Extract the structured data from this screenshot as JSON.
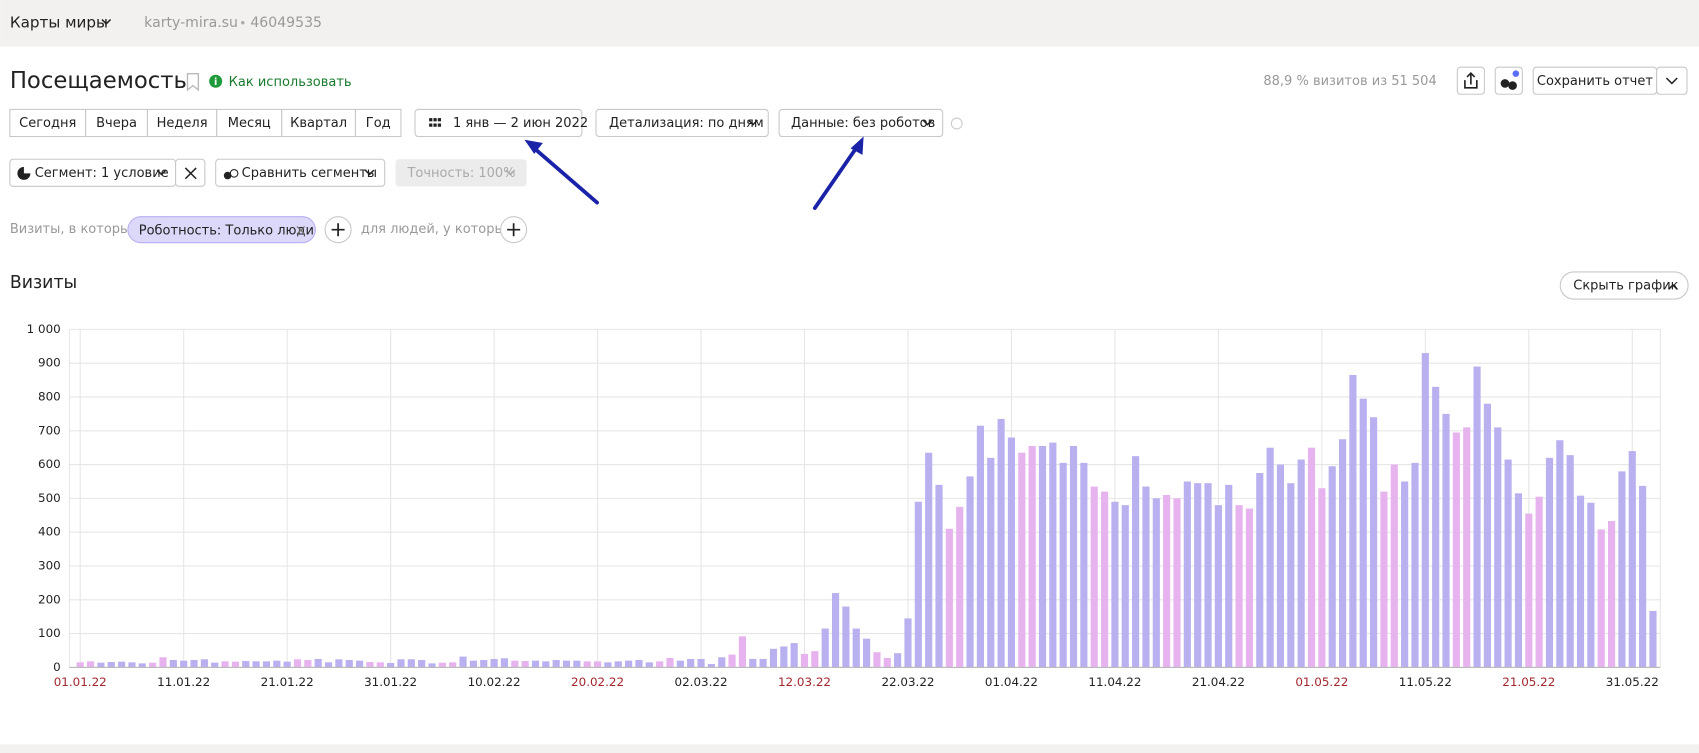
{
  "header": {
    "site": "Карты миры",
    "domain": "karty-mira.su",
    "counter": "46049535"
  },
  "report": {
    "title": "Посещаемость",
    "help": "Как использовать",
    "stats": "88,9 % визитов из 51 504",
    "save": "Сохранить отчет"
  },
  "controls": {
    "periods": [
      "Сегодня",
      "Вчера",
      "Неделя",
      "Месяц",
      "Квартал",
      "Год"
    ],
    "date_range": "1 янв — 2 июн 2022",
    "detail": "Детализация: по дням",
    "data": "Данные: без роботов",
    "segment": "Сегмент: 1 условие",
    "compare": "Сравнить сегменты",
    "accuracy": "Точность: 100%"
  },
  "filter": {
    "prefix": "Визиты, в которых",
    "chip": "Роботность: Только люди",
    "suffix": "для людей, у которых"
  },
  "chart_header": {
    "title": "Визиты",
    "hide": "Скрыть график"
  },
  "chart_data": {
    "type": "bar",
    "categories": [
      "01.01.22",
      null,
      null,
      null,
      null,
      null,
      null,
      null,
      null,
      null,
      "11.01.22",
      null,
      null,
      null,
      null,
      null,
      null,
      null,
      null,
      null,
      "21.01.22",
      null,
      null,
      null,
      null,
      null,
      null,
      null,
      null,
      null,
      "31.01.22",
      null,
      null,
      null,
      null,
      null,
      null,
      null,
      null,
      null,
      "10.02.22",
      null,
      null,
      null,
      null,
      null,
      null,
      null,
      null,
      null,
      "20.02.22",
      null,
      null,
      null,
      null,
      null,
      null,
      null,
      null,
      null,
      "02.03.22",
      null,
      null,
      null,
      null,
      null,
      null,
      null,
      null,
      null,
      "12.03.22",
      null,
      null,
      null,
      null,
      null,
      null,
      null,
      null,
      null,
      "22.03.22",
      null,
      null,
      null,
      null,
      null,
      null,
      null,
      null,
      null,
      "01.04.22",
      null,
      null,
      null,
      null,
      null,
      null,
      null,
      null,
      null,
      "11.04.22",
      null,
      null,
      null,
      null,
      null,
      null,
      null,
      null,
      null,
      "21.04.22",
      null,
      null,
      null,
      null,
      null,
      null,
      null,
      null,
      null,
      "01.05.22",
      null,
      null,
      null,
      null,
      null,
      null,
      null,
      null,
      null,
      "11.05.22",
      null,
      null,
      null,
      null,
      null,
      null,
      null,
      null,
      null,
      "21.05.22",
      null,
      null,
      null,
      null,
      null,
      null,
      null,
      null,
      null,
      "31.05.22",
      null,
      null
    ],
    "values": [
      15,
      18,
      14,
      16,
      17,
      15,
      12,
      14,
      30,
      22,
      20,
      22,
      24,
      14,
      18,
      17,
      19,
      18,
      18,
      20,
      17,
      24,
      22,
      25,
      15,
      24,
      22,
      20,
      16,
      15,
      13,
      24,
      24,
      22,
      12,
      14,
      15,
      32,
      20,
      22,
      25,
      27,
      20,
      19,
      20,
      18,
      22,
      20,
      20,
      18,
      18,
      15,
      18,
      20,
      22,
      15,
      18,
      28,
      20,
      25,
      25,
      10,
      30,
      38,
      92,
      25,
      25,
      55,
      62,
      72,
      40,
      48,
      115,
      220,
      180,
      115,
      85,
      45,
      28,
      42,
      145,
      490,
      635,
      540,
      410,
      475,
      565,
      715,
      620,
      735,
      680,
      635,
      655,
      655,
      665,
      605,
      655,
      605,
      535,
      520,
      490,
      480,
      625,
      535,
      500,
      510,
      500,
      550,
      545,
      545,
      480,
      540,
      480,
      470,
      575,
      650,
      600,
      545,
      615,
      650,
      530,
      595,
      675,
      865,
      795,
      740,
      520,
      600,
      550,
      605,
      930,
      830,
      750,
      695,
      710,
      890,
      780,
      710,
      615,
      515,
      455,
      505,
      620,
      672,
      628,
      508,
      487,
      408,
      433,
      580,
      640,
      537,
      167
    ],
    "colors": [
      "#e7b3ee",
      "#e7b3ee",
      "#b9b0f0",
      "#b9b0f0",
      "#b9b0f0",
      "#b9b0f0",
      "#b9b0f0",
      "#e7b3ee",
      "#e7b3ee",
      "#b9b0f0",
      "#b9b0f0",
      "#b9b0f0",
      "#b9b0f0",
      "#b9b0f0",
      "#e7b3ee",
      "#e7b3ee",
      "#b9b0f0",
      "#b9b0f0",
      "#b9b0f0",
      "#b9b0f0",
      "#b9b0f0",
      "#e7b3ee",
      "#e7b3ee",
      "#b9b0f0",
      "#b9b0f0",
      "#b9b0f0",
      "#b9b0f0",
      "#b9b0f0",
      "#e7b3ee",
      "#e7b3ee",
      "#b9b0f0",
      "#b9b0f0",
      "#b9b0f0",
      "#b9b0f0",
      "#b9b0f0",
      "#e7b3ee",
      "#e7b3ee",
      "#b9b0f0",
      "#b9b0f0",
      "#b9b0f0",
      "#b9b0f0",
      "#b9b0f0",
      "#e7b3ee",
      "#e7b3ee",
      "#b9b0f0",
      "#b9b0f0",
      "#b9b0f0",
      "#b9b0f0",
      "#b9b0f0",
      "#e7b3ee",
      "#e7b3ee",
      "#b9b0f0",
      "#b9b0f0",
      "#b9b0f0",
      "#b9b0f0",
      "#b9b0f0",
      "#e7b3ee",
      "#e7b3ee",
      "#b9b0f0",
      "#b9b0f0",
      "#b9b0f0",
      "#b9b0f0",
      "#b9b0f0",
      "#e7b3ee",
      "#e7b3ee",
      "#b9b0f0",
      "#b9b0f0",
      "#b9b0f0",
      "#b9b0f0",
      "#b9b0f0",
      "#e7b3ee",
      "#e7b3ee",
      "#b9b0f0",
      "#b9b0f0",
      "#b9b0f0",
      "#b9b0f0",
      "#b9b0f0",
      "#e7b3ee",
      "#e7b3ee",
      "#b9b0f0",
      "#b9b0f0",
      "#b9b0f0",
      "#b9b0f0",
      "#b9b0f0",
      "#e7b3ee",
      "#e7b3ee",
      "#b9b0f0",
      "#b9b0f0",
      "#b9b0f0",
      "#b9b0f0",
      "#b9b0f0",
      "#e7b3ee",
      "#e7b3ee",
      "#b9b0f0",
      "#b9b0f0",
      "#b9b0f0",
      "#b9b0f0",
      "#b9b0f0",
      "#e7b3ee",
      "#e7b3ee",
      "#b9b0f0",
      "#b9b0f0",
      "#b9b0f0",
      "#b9b0f0",
      "#b9b0f0",
      "#e7b3ee",
      "#e7b3ee",
      "#b9b0f0",
      "#b9b0f0",
      "#b9b0f0",
      "#b9b0f0",
      "#b9b0f0",
      "#e7b3ee",
      "#e7b3ee",
      "#b9b0f0",
      "#b9b0f0",
      "#b9b0f0",
      "#b9b0f0",
      "#b9b0f0",
      "#e7b3ee",
      "#e7b3ee",
      "#b9b0f0",
      "#b9b0f0",
      "#b9b0f0",
      "#b9b0f0",
      "#b9b0f0",
      "#e7b3ee",
      "#e7b3ee",
      "#b9b0f0",
      "#b9b0f0",
      "#b9b0f0",
      "#b9b0f0",
      "#b9b0f0",
      "#e7b3ee",
      "#e7b3ee",
      "#b9b0f0",
      "#b9b0f0",
      "#b9b0f0",
      "#b9b0f0",
      "#b9b0f0",
      "#e7b3ee",
      "#e7b3ee",
      "#b9b0f0",
      "#b9b0f0",
      "#b9b0f0",
      "#b9b0f0",
      "#b9b0f0",
      "#e7b3ee",
      "#e7b3ee",
      "#b9b0f0",
      "#b9b0f0",
      "#b9b0f0",
      "#b9b0f0"
    ],
    "weekend_color": "#e7b3ee",
    "weekend_label_color": "#a3262e",
    "ylim": [
      0,
      1000
    ],
    "yticks": [
      0,
      100,
      200,
      300,
      400,
      500,
      600,
      700,
      800,
      900,
      {
        "value": 1000,
        "label": "1 000"
      }
    ],
    "grid": true
  }
}
